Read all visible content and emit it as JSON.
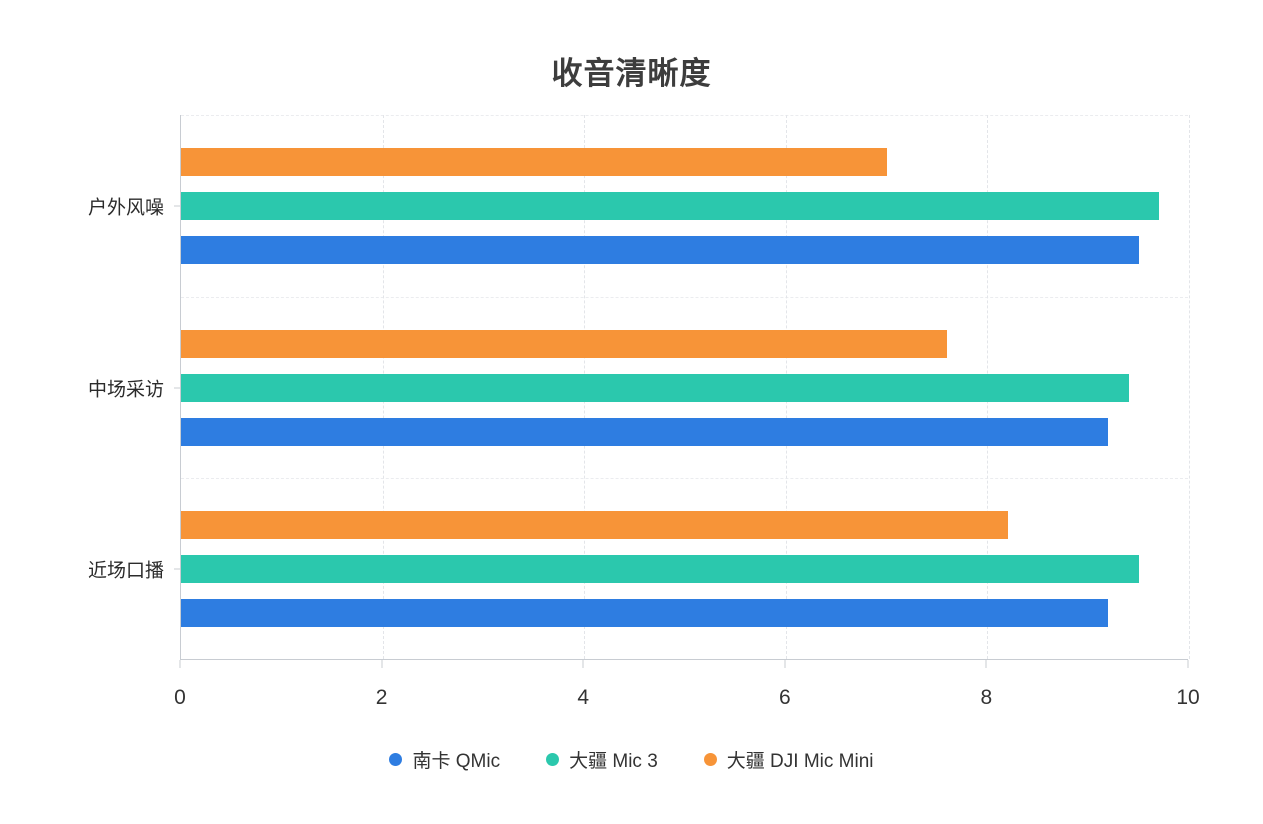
{
  "title": "收音清晰度",
  "background_color": "#ffffff",
  "chart_data": {
    "type": "bar",
    "orientation": "horizontal",
    "title": "收音清晰度",
    "categories": [
      "户外风噪",
      "中场采访",
      "近场口播"
    ],
    "series": [
      {
        "name": "南卡 QMic",
        "color": "#2E7DE1",
        "values": [
          9.5,
          9.2,
          9.2
        ]
      },
      {
        "name": "大疆 Mic 3",
        "color": "#2BC8AD",
        "values": [
          9.7,
          9.4,
          9.5
        ]
      },
      {
        "name": "大疆 DJI Mic Mini",
        "color": "#F79438",
        "values": [
          7.0,
          7.6,
          8.2
        ]
      }
    ],
    "bar_order_in_group_top_to_bottom": [
      "大疆 DJI Mic Mini",
      "大疆 Mic 3",
      "南卡 QMic"
    ],
    "xlabel": "",
    "ylabel": "",
    "xlim": [
      0,
      10
    ],
    "xticks": [
      0,
      2,
      4,
      6,
      8,
      10
    ],
    "grid": "dashed",
    "legend_position": "bottom"
  }
}
